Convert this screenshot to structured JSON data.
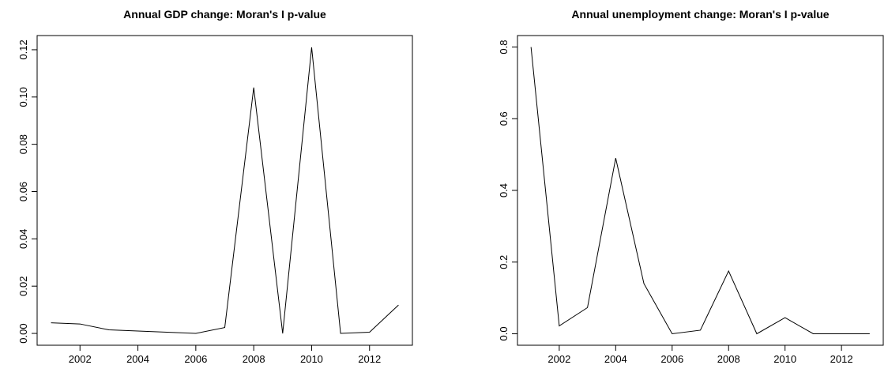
{
  "chart_data": [
    {
      "type": "line",
      "title": "Annual GDP change: Moran's I p-value",
      "x": [
        2001,
        2002,
        2003,
        2004,
        2005,
        2006,
        2007,
        2008,
        2009,
        2010,
        2011,
        2012,
        2013
      ],
      "series": [
        {
          "color": "#000000",
          "values": [
            0.0045,
            0.004,
            0.0015,
            0.001,
            0.0005,
            0.0,
            0.0025,
            0.104,
            0.0,
            0.121,
            0.0,
            0.0005,
            0.012
          ]
        }
      ],
      "xlim": [
        2000.52,
        2013.48
      ],
      "xticks": [
        2002,
        2004,
        2006,
        2008,
        2010,
        2012
      ],
      "ylim": [
        -0.005,
        0.126
      ],
      "yticks": [
        {
          "value": 0,
          "label": "0.00"
        },
        {
          "value": 0.02,
          "label": "0.02"
        },
        {
          "value": 0.04,
          "label": "0.04"
        },
        {
          "value": 0.06,
          "label": "0.06"
        },
        {
          "value": 0.08,
          "label": "0.08"
        },
        {
          "value": 0.1,
          "label": "0.10"
        },
        {
          "value": 0.12,
          "label": "0.12"
        }
      ]
    },
    {
      "type": "line",
      "title": "Annual unemployment change: Moran's I p-value",
      "x": [
        2001,
        2002,
        2003,
        2004,
        2005,
        2006,
        2007,
        2008,
        2009,
        2010,
        2011,
        2012,
        2013
      ],
      "series": [
        {
          "color": "#000000",
          "values": [
            0.8,
            0.022,
            0.073,
            0.49,
            0.14,
            0.0,
            0.01,
            0.175,
            0.0,
            0.045,
            0.0,
            0.0,
            0.0
          ]
        }
      ],
      "xlim": [
        2000.52,
        2013.48
      ],
      "xticks": [
        2002,
        2004,
        2006,
        2008,
        2010,
        2012
      ],
      "ylim": [
        -0.032,
        0.832
      ],
      "yticks": [
        {
          "value": 0,
          "label": "0.0"
        },
        {
          "value": 0.2,
          "label": "0.2"
        },
        {
          "value": 0.4,
          "label": "0.4"
        },
        {
          "value": 0.6,
          "label": "0.6"
        },
        {
          "value": 0.8,
          "label": "0.8"
        }
      ]
    }
  ]
}
